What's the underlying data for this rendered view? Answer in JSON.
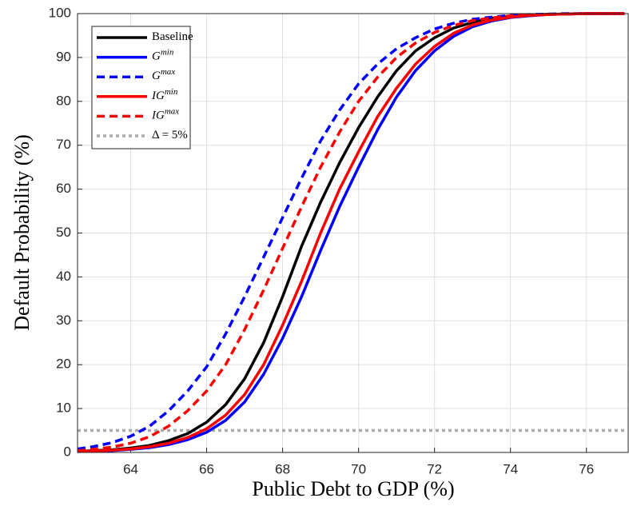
{
  "chart_data": {
    "type": "line",
    "x_label": "Public Debt to GDP (%)",
    "y_label": "Default Probability (%)",
    "x": [
      62.6,
      63,
      63.5,
      64,
      64.5,
      65,
      65.5,
      66,
      66.5,
      67,
      67.5,
      68,
      68.5,
      69,
      69.5,
      70,
      70.5,
      71,
      71.5,
      72,
      72.5,
      73,
      73.5,
      74,
      74.5,
      75,
      75.5,
      76,
      76.5,
      77
    ],
    "series": [
      {
        "name": "Baseline",
        "color": "#000000",
        "dash": "solid",
        "values": [
          0.25,
          0.4,
          0.6,
          1.0,
          1.6,
          2.7,
          4.3,
          6.9,
          10.9,
          16.8,
          25,
          35.5,
          47,
          57,
          66,
          74,
          81,
          87,
          91.5,
          94.5,
          96.7,
          98,
          98.9,
          99.4,
          99.7,
          99.85,
          99.9,
          100,
          100,
          100
        ]
      },
      {
        "name": "G",
        "superscript": "min",
        "color": "#0000ff",
        "dash": "solid",
        "values": [
          0.2,
          0.3,
          0.4,
          0.7,
          1.1,
          1.8,
          2.9,
          4.6,
          7.3,
          11.5,
          17.8,
          26,
          35.5,
          46,
          56,
          65,
          73.5,
          81,
          87,
          91.5,
          94.8,
          97,
          98.3,
          99.1,
          99.5,
          99.8,
          99.9,
          100,
          100,
          100
        ]
      },
      {
        "name": "G",
        "superscript": "max",
        "color": "#0000ff",
        "dash": "dashed",
        "values": [
          0.8,
          1.3,
          2.2,
          3.7,
          6,
          9.5,
          14,
          19.5,
          27,
          35.5,
          44.5,
          53.5,
          62.5,
          71,
          78,
          84,
          88.5,
          92,
          94.5,
          96.5,
          97.8,
          98.7,
          99.2,
          99.6,
          99.8,
          99.9,
          100,
          100,
          100,
          100
        ]
      },
      {
        "name": "IG",
        "superscript": "min",
        "color": "#ff0000",
        "dash": "solid",
        "values": [
          0.2,
          0.3,
          0.5,
          0.8,
          1.3,
          2.1,
          3.4,
          5.4,
          8.5,
          13.2,
          20,
          29,
          39,
          50,
          60,
          68.5,
          76.5,
          83,
          88.5,
          92.5,
          95.5,
          97.4,
          98.5,
          99.2,
          99.6,
          99.8,
          99.9,
          100,
          100,
          100
        ]
      },
      {
        "name": "IG",
        "superscript": "max",
        "color": "#ff0000",
        "dash": "dashed",
        "values": [
          0.4,
          0.7,
          1.2,
          2.1,
          3.6,
          6,
          9.5,
          14,
          20,
          28,
          37,
          46.5,
          56,
          65,
          73,
          80,
          85.5,
          90,
          93.3,
          95.7,
          97.3,
          98.4,
          99,
          99.5,
          99.7,
          99.85,
          99.9,
          100,
          100,
          100
        ]
      },
      {
        "name": "Δ = 5%",
        "color": "#aaaaaa",
        "dash": "dotted",
        "values": [
          5,
          5,
          5,
          5,
          5,
          5,
          5,
          5,
          5,
          5,
          5,
          5,
          5,
          5,
          5,
          5,
          5,
          5,
          5,
          5,
          5,
          5,
          5,
          5,
          5,
          5,
          5,
          5,
          5,
          5
        ]
      }
    ],
    "xlim": [
      62.6,
      77.1
    ],
    "xticks": [
      64,
      66,
      68,
      70,
      72,
      74,
      76
    ],
    "ylim": [
      0,
      100
    ],
    "yticks": [
      0,
      10,
      20,
      30,
      40,
      50,
      60,
      70,
      80,
      90,
      100
    ],
    "grid": true,
    "legend": "upper left"
  }
}
